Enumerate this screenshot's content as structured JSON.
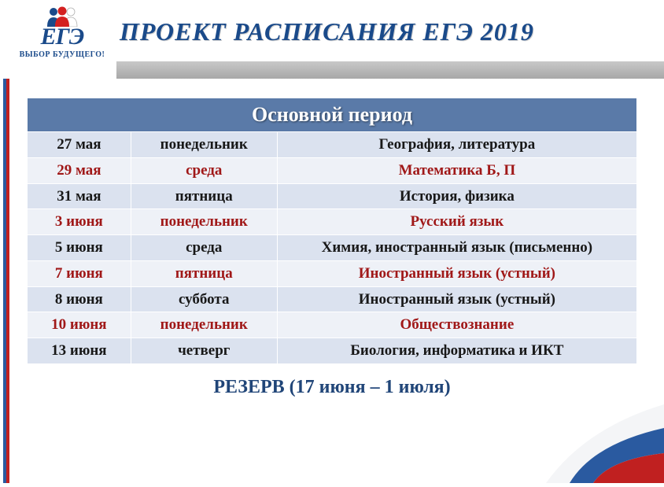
{
  "logo": {
    "text": "ЕГЭ",
    "tagline": "ВЫБОР БУДУЩЕГО!",
    "people_colors": [
      "#1a4a8a",
      "#d42020",
      "#ffffff"
    ]
  },
  "title": "ПРОЕКТ  РАСПИСАНИЯ  ЕГЭ  2019",
  "colors": {
    "title": "#1a4a8a",
    "table_header_bg": "#5a7aa8",
    "table_header_text": "#ffffff",
    "row_color_a": "#dbe2ef",
    "row_color_b": "#eef1f7",
    "text_black": "#181818",
    "text_red": "#a01818",
    "footer_text": "#204578",
    "gray_band": "#b0b0b0",
    "left_stripe_1": "#ffffff",
    "left_stripe_2": "#2a5aa0",
    "left_stripe_3": "#c02020",
    "flag_white": "#f4f5f7",
    "flag_blue": "#2a5aa0",
    "flag_red": "#c02020"
  },
  "table": {
    "header": "Основной  период",
    "col_widths": [
      "17%",
      "24%",
      "59%"
    ],
    "rows": [
      {
        "date": "27 мая",
        "day": "понедельник",
        "subjects": "География, литература",
        "highlight": false
      },
      {
        "date": "29 мая",
        "day": "среда",
        "subjects": "Математика  Б, П",
        "highlight": true
      },
      {
        "date": "31 мая",
        "day": "пятница",
        "subjects": "История, физика",
        "highlight": false
      },
      {
        "date": "3 июня",
        "day": "понедельник",
        "subjects": "Русский  язык",
        "highlight": true
      },
      {
        "date": "5 июня",
        "day": "среда",
        "subjects": "Химия, иностранный язык (письменно)",
        "highlight": false
      },
      {
        "date": "7 июня",
        "day": "пятница",
        "subjects": "Иностранный  язык (устный)",
        "highlight": true
      },
      {
        "date": "8 июня",
        "day": "суббота",
        "subjects": "Иностранный  язык (устный)",
        "highlight": false
      },
      {
        "date": "10 июня",
        "day": "понедельник",
        "subjects": "Обществознание",
        "highlight": true
      },
      {
        "date": "13 июня",
        "day": "четверг",
        "subjects": "Биология, информатика и ИКТ",
        "highlight": false
      }
    ]
  },
  "footer": "РЕЗЕРВ  (17 июня – 1  июля)"
}
